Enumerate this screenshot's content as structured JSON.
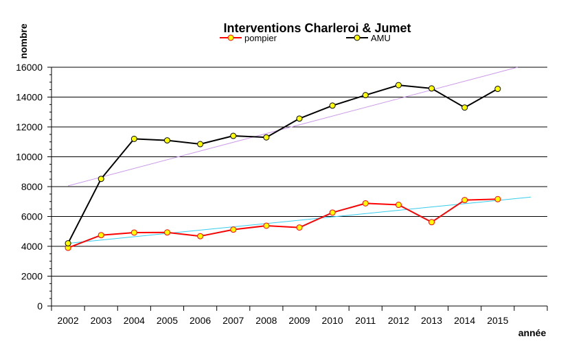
{
  "chart_data": {
    "type": "line",
    "title": "Interventions Charleroi & Jumet",
    "xlabel": "année",
    "ylabel": "nombre",
    "categories": [
      "2002",
      "2003",
      "2004",
      "2005",
      "2006",
      "2007",
      "2008",
      "2009",
      "2010",
      "2011",
      "2012",
      "2013",
      "2014",
      "2015"
    ],
    "ylim": [
      0,
      16000
    ],
    "yticks": [
      "0",
      "2000",
      "4000",
      "6000",
      "8000",
      "10000",
      "12000",
      "14000",
      "16000"
    ],
    "grid": true,
    "legend_position": "top-center",
    "series": [
      {
        "name": "pompier",
        "color": "#ff0000",
        "marker_fill": "#ffff00",
        "values": [
          3900,
          4750,
          4920,
          4930,
          4680,
          5120,
          5380,
          5260,
          6260,
          6880,
          6780,
          5620,
          7100,
          7160
        ],
        "trendline": {
          "color": "#33ccee",
          "start": [
            2002,
            4200
          ],
          "end": [
            2016,
            7300
          ]
        }
      },
      {
        "name": "AMU",
        "color": "#000000",
        "marker_fill": "#ffff00",
        "values": [
          4200,
          8520,
          11200,
          11100,
          10850,
          11400,
          11300,
          12560,
          13430,
          14130,
          14800,
          14580,
          13300,
          14550
        ],
        "trendline": {
          "color": "#cc99ee",
          "start": [
            2002,
            8050
          ],
          "end": [
            2015.6,
            16000
          ]
        }
      }
    ]
  }
}
